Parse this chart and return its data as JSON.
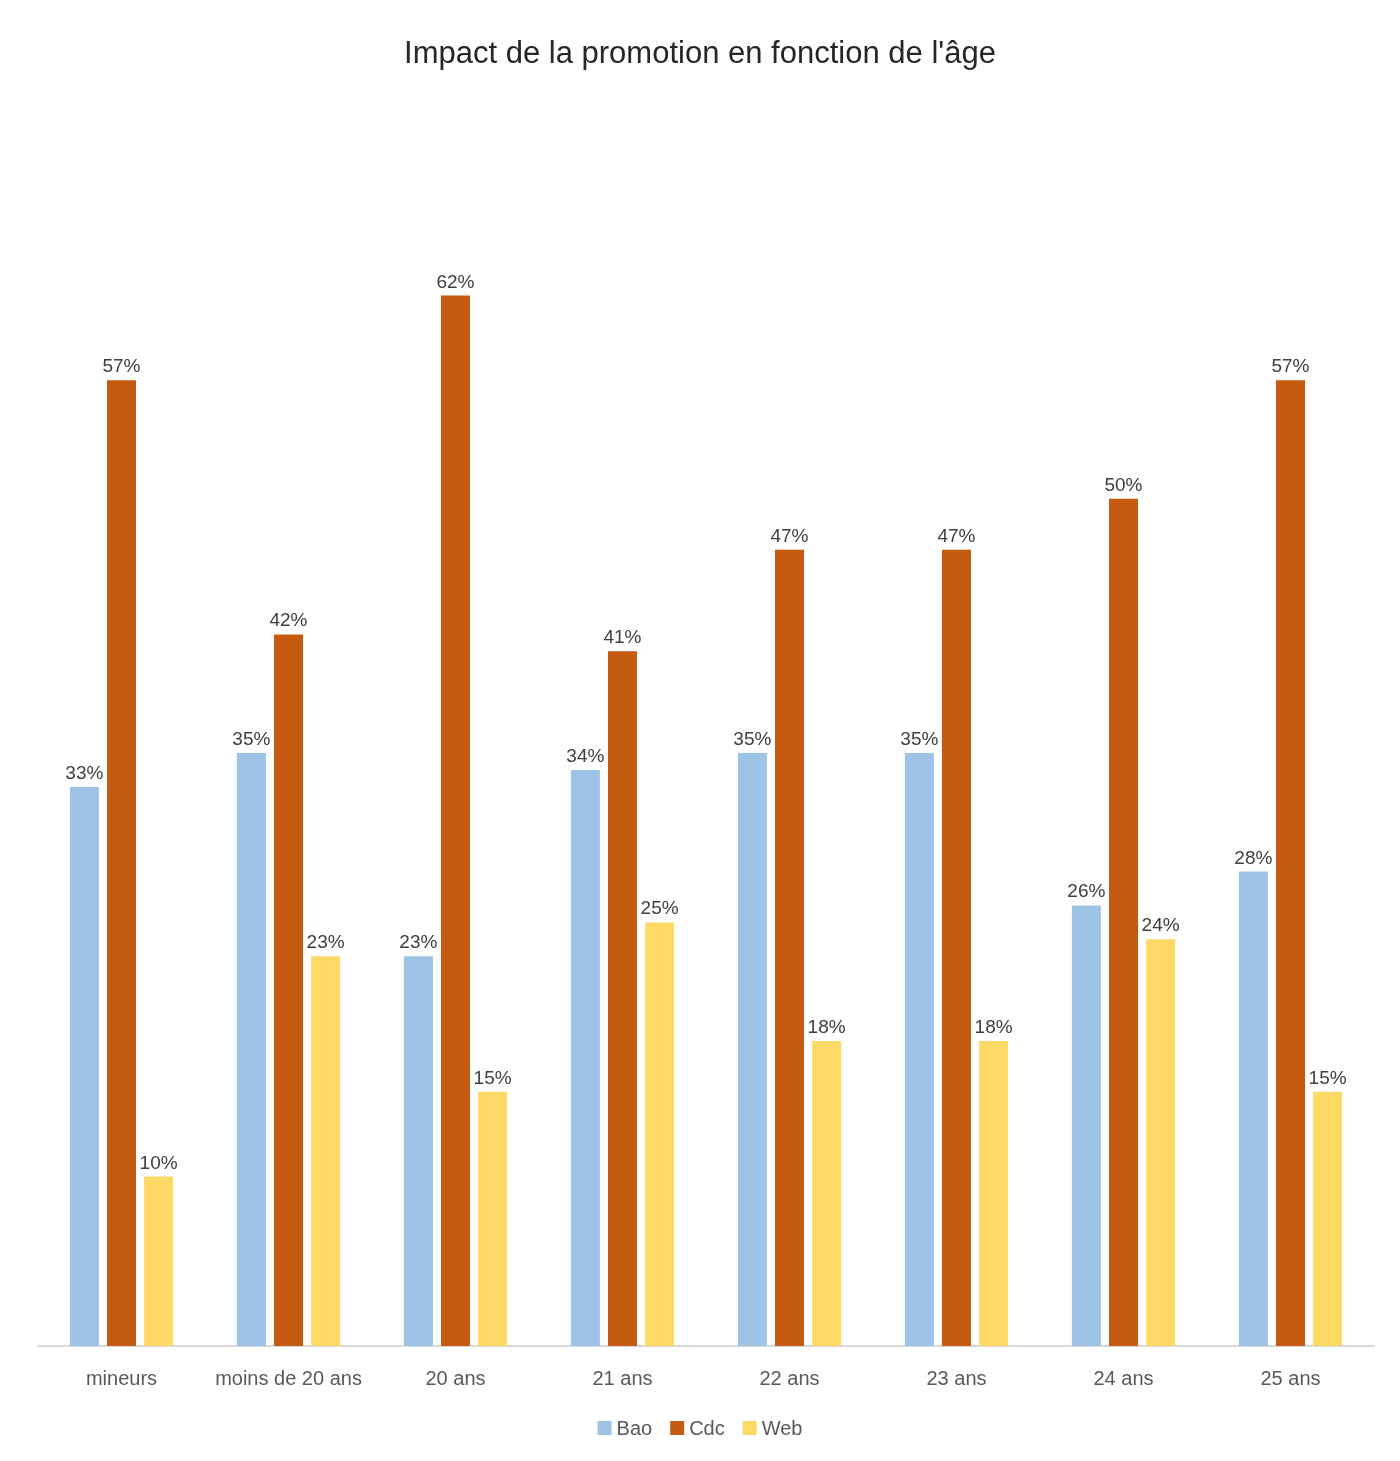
{
  "chart_data": {
    "type": "bar",
    "title": "Impact de la promotion en fonction de l'âge",
    "categories": [
      "mineurs",
      "moins de 20 ans",
      "20 ans",
      "21 ans",
      "22 ans",
      "23 ans",
      "24 ans",
      "25 ans"
    ],
    "series": [
      {
        "name": "Bao",
        "color": "#9dc3e6",
        "values": [
          33,
          35,
          23,
          34,
          35,
          35,
          26,
          28
        ],
        "value_labels": [
          "33%",
          "35%",
          "23%",
          "34%",
          "35%",
          "35%",
          "26%",
          "28%"
        ]
      },
      {
        "name": "Cdc",
        "color": "#c55a11",
        "values": [
          57,
          42,
          62,
          41,
          47,
          47,
          50,
          57
        ],
        "value_labels": [
          "57%",
          "42%",
          "62%",
          "41%",
          "47%",
          "47%",
          "50%",
          "57%"
        ]
      },
      {
        "name": "Web",
        "color": "#ffd966",
        "values": [
          10,
          23,
          15,
          25,
          18,
          18,
          24,
          15
        ],
        "value_labels": [
          "10%",
          "23%",
          "15%",
          "25%",
          "18%",
          "18%",
          "24%",
          "15%"
        ]
      }
    ],
    "legend": "bottom"
  }
}
